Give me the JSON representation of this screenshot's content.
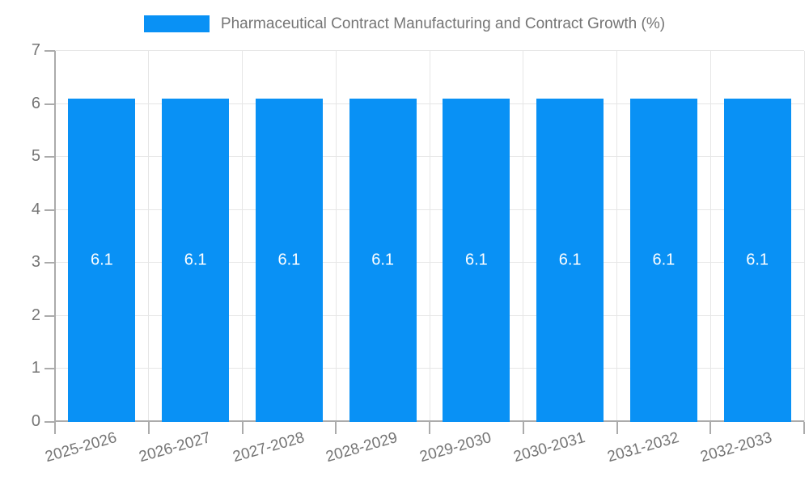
{
  "chart_data": {
    "type": "bar",
    "title": "Pharmaceutical Contract Manufacturing and Contract Growth (%)",
    "categories": [
      "2025-2026",
      "2026-2027",
      "2027-2028",
      "2028-2029",
      "2029-2030",
      "2030-2031",
      "2031-2032",
      "2032-2033"
    ],
    "values": [
      6.1,
      6.1,
      6.1,
      6.1,
      6.1,
      6.1,
      6.1,
      6.1
    ],
    "bar_labels": [
      "6.1",
      "6.1",
      "6.1",
      "6.1",
      "6.1",
      "6.1",
      "6.1",
      "6.1"
    ],
    "xlabel": "",
    "ylabel": "",
    "ylim": [
      0,
      7
    ],
    "ytick_step": 1,
    "ytick_labels": [
      "0",
      "1",
      "2",
      "3",
      "4",
      "5",
      "6",
      "7"
    ],
    "grid": true,
    "legend_position": "top",
    "colors": {
      "bar": "#0991f5",
      "grid": "#e6e6e6",
      "axis": "#ababab",
      "text": "#757575",
      "bar_label": "#ffffff",
      "background": "#ffffff"
    }
  }
}
